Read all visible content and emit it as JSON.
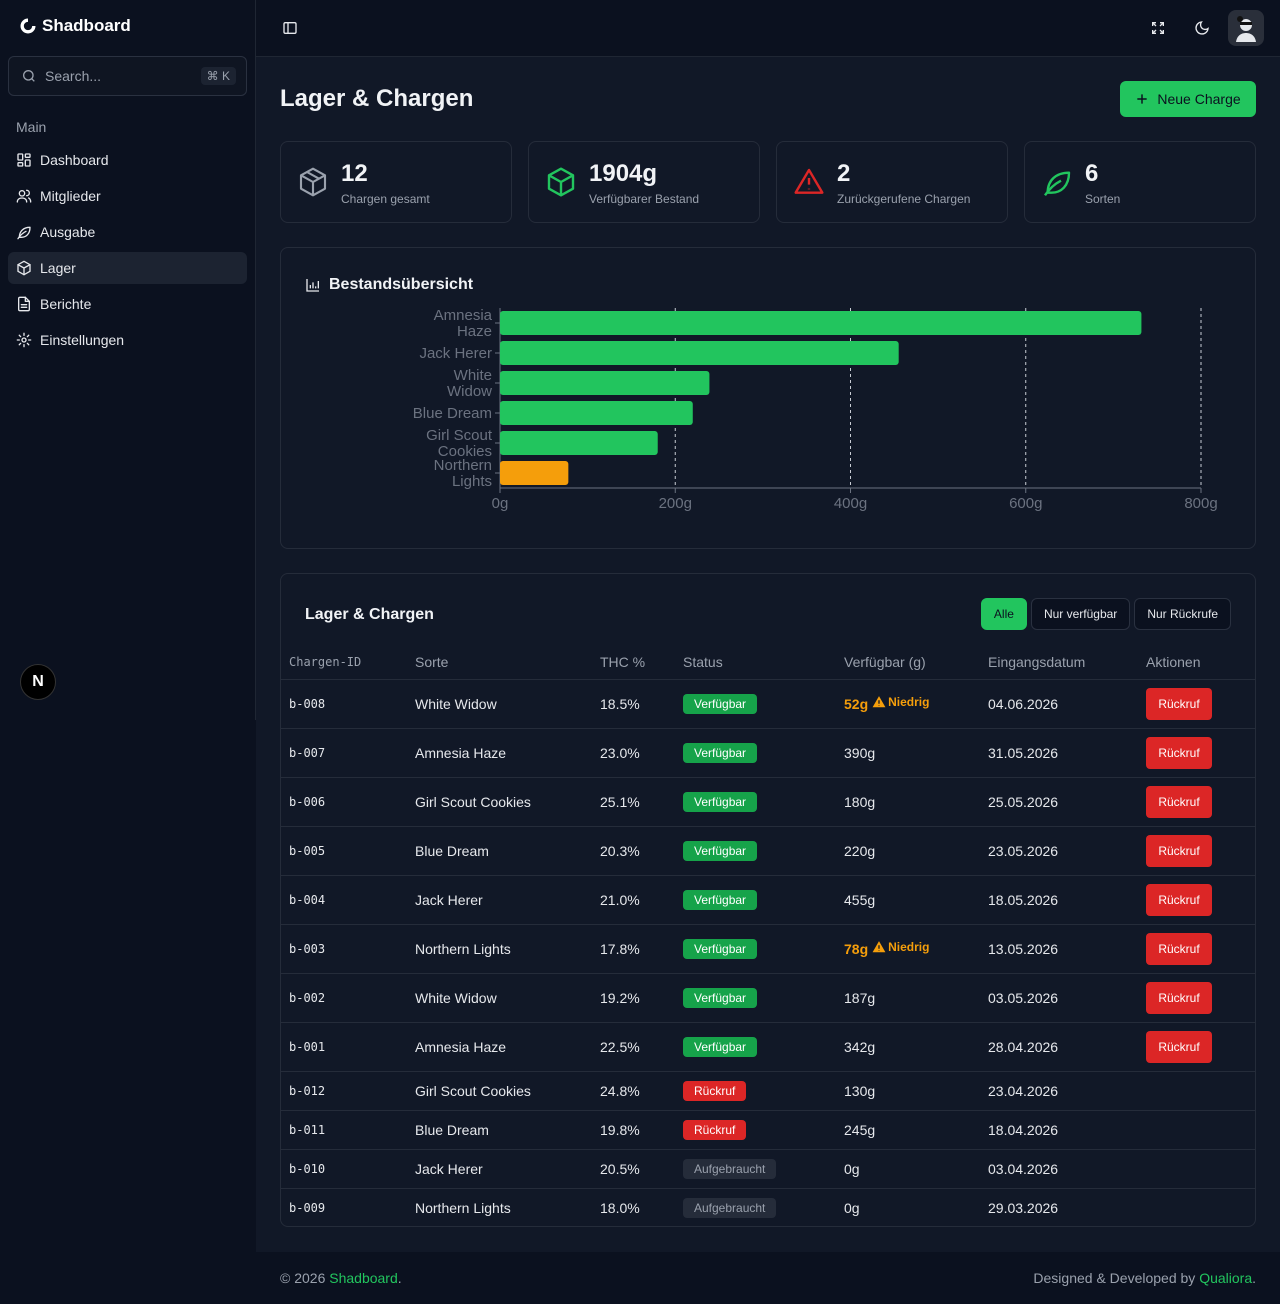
{
  "app": {
    "name": "Shadboard"
  },
  "search": {
    "placeholder": "Search...",
    "shortcut": "⌘ K"
  },
  "nav": {
    "group": "Main",
    "items": [
      {
        "label": "Dashboard",
        "icon": "dashboard-icon"
      },
      {
        "label": "Mitglieder",
        "icon": "users-icon"
      },
      {
        "label": "Ausgabe",
        "icon": "leaf-icon"
      },
      {
        "label": "Lager",
        "icon": "package-icon",
        "active": true
      },
      {
        "label": "Berichte",
        "icon": "file-icon"
      },
      {
        "label": "Einstellungen",
        "icon": "gear-icon"
      }
    ]
  },
  "badge_letter": "N",
  "page": {
    "title": "Lager & Chargen",
    "new_button": "Neue Charge"
  },
  "stats": [
    {
      "value": "12",
      "label": "Chargen gesamt",
      "color": "#9aa1ad"
    },
    {
      "value": "1904g",
      "label": "Verfügbarer Bestand",
      "color": "#22c55e"
    },
    {
      "value": "2",
      "label": "Zurückgerufene Chargen",
      "color": "#dc2626"
    },
    {
      "value": "6",
      "label": "Sorten",
      "color": "#22c55e"
    }
  ],
  "chart_data": {
    "type": "bar",
    "orientation": "horizontal",
    "title": "Bestandsübersicht",
    "categories": [
      "Amnesia Haze",
      "Jack Herer",
      "White Widow",
      "Blue Dream",
      "Girl Scout Cookies",
      "Northern Lights"
    ],
    "values": [
      732,
      455,
      239,
      220,
      180,
      78
    ],
    "colors": [
      "#22c55e",
      "#22c55e",
      "#22c55e",
      "#22c55e",
      "#22c55e",
      "#f59e0b"
    ],
    "xlim": [
      0,
      800
    ],
    "xticks": [
      "0g",
      "200g",
      "400g",
      "600g",
      "800g"
    ],
    "grid": "vertical dashed"
  },
  "table": {
    "title": "Lager & Chargen",
    "filters": [
      "Alle",
      "Nur verfügbar",
      "Nur Rückrufe"
    ],
    "columns": [
      "Chargen-ID",
      "Sorte",
      "THC %",
      "Status",
      "Verfügbar (g)",
      "Eingangsdatum",
      "Aktionen"
    ],
    "rows": [
      {
        "id": "b-008",
        "sorte": "White Widow",
        "thc": "18.5%",
        "status": "Verfügbar",
        "avail": "52g",
        "low": "Niedrig",
        "date": "04.06.2026",
        "action": "Rückruf"
      },
      {
        "id": "b-007",
        "sorte": "Amnesia Haze",
        "thc": "23.0%",
        "status": "Verfügbar",
        "avail": "390g",
        "date": "31.05.2026",
        "action": "Rückruf"
      },
      {
        "id": "b-006",
        "sorte": "Girl Scout Cookies",
        "thc": "25.1%",
        "status": "Verfügbar",
        "avail": "180g",
        "date": "25.05.2026",
        "action": "Rückruf"
      },
      {
        "id": "b-005",
        "sorte": "Blue Dream",
        "thc": "20.3%",
        "status": "Verfügbar",
        "avail": "220g",
        "date": "23.05.2026",
        "action": "Rückruf"
      },
      {
        "id": "b-004",
        "sorte": "Jack Herer",
        "thc": "21.0%",
        "status": "Verfügbar",
        "avail": "455g",
        "date": "18.05.2026",
        "action": "Rückruf"
      },
      {
        "id": "b-003",
        "sorte": "Northern Lights",
        "thc": "17.8%",
        "status": "Verfügbar",
        "avail": "78g",
        "low": "Niedrig",
        "date": "13.05.2026",
        "action": "Rückruf"
      },
      {
        "id": "b-002",
        "sorte": "White Widow",
        "thc": "19.2%",
        "status": "Verfügbar",
        "avail": "187g",
        "date": "03.05.2026",
        "action": "Rückruf"
      },
      {
        "id": "b-001",
        "sorte": "Amnesia Haze",
        "thc": "22.5%",
        "status": "Verfügbar",
        "avail": "342g",
        "date": "28.04.2026",
        "action": "Rückruf"
      },
      {
        "id": "b-012",
        "sorte": "Girl Scout Cookies",
        "thc": "24.8%",
        "status": "Rückruf",
        "avail": "130g",
        "date": "23.04.2026"
      },
      {
        "id": "b-011",
        "sorte": "Blue Dream",
        "thc": "19.8%",
        "status": "Rückruf",
        "avail": "245g",
        "date": "18.04.2026"
      },
      {
        "id": "b-010",
        "sorte": "Jack Herer",
        "thc": "20.5%",
        "status": "Aufgebraucht",
        "avail": "0g",
        "date": "03.04.2026"
      },
      {
        "id": "b-009",
        "sorte": "Northern Lights",
        "thc": "18.0%",
        "status": "Aufgebraucht",
        "avail": "0g",
        "date": "29.03.2026"
      }
    ]
  },
  "footer": {
    "copyright": "© 2026 ",
    "brand": "Shadboard",
    "brand_suffix": ".",
    "credit": "Designed & Developed by ",
    "credit_link": "Qualiora",
    "credit_suffix": "."
  }
}
